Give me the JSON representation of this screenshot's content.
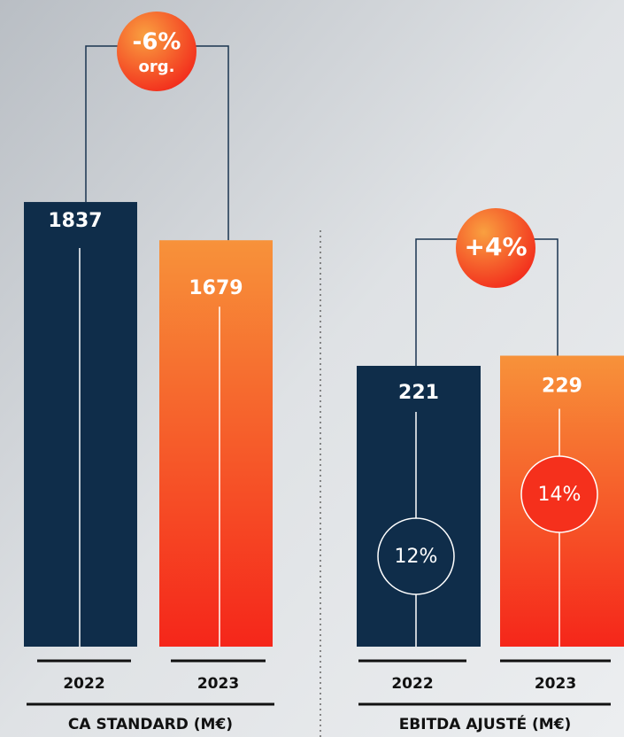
{
  "chart_data": [
    {
      "type": "bar",
      "xlabel": "CA STANDARD (M€)",
      "categories": [
        "2022",
        "2023"
      ],
      "values": [
        1837,
        1679
      ],
      "colors": [
        "#0f2d4a",
        "#f7923a"
      ],
      "ylim": [
        0,
        2000
      ],
      "change": "-6%",
      "change_note": "org."
    },
    {
      "type": "bar",
      "xlabel": "EBITDA AJUSTÉ (M€)",
      "categories": [
        "2022",
        "2023"
      ],
      "values": [
        221,
        229
      ],
      "colors": [
        "#0f2d4a",
        "#f7923a"
      ],
      "ylim": [
        0,
        250
      ],
      "change": "+4%",
      "margins": {
        "values": [
          12,
          14
        ],
        "value_labels": [
          "12%",
          "14%"
        ]
      }
    }
  ]
}
